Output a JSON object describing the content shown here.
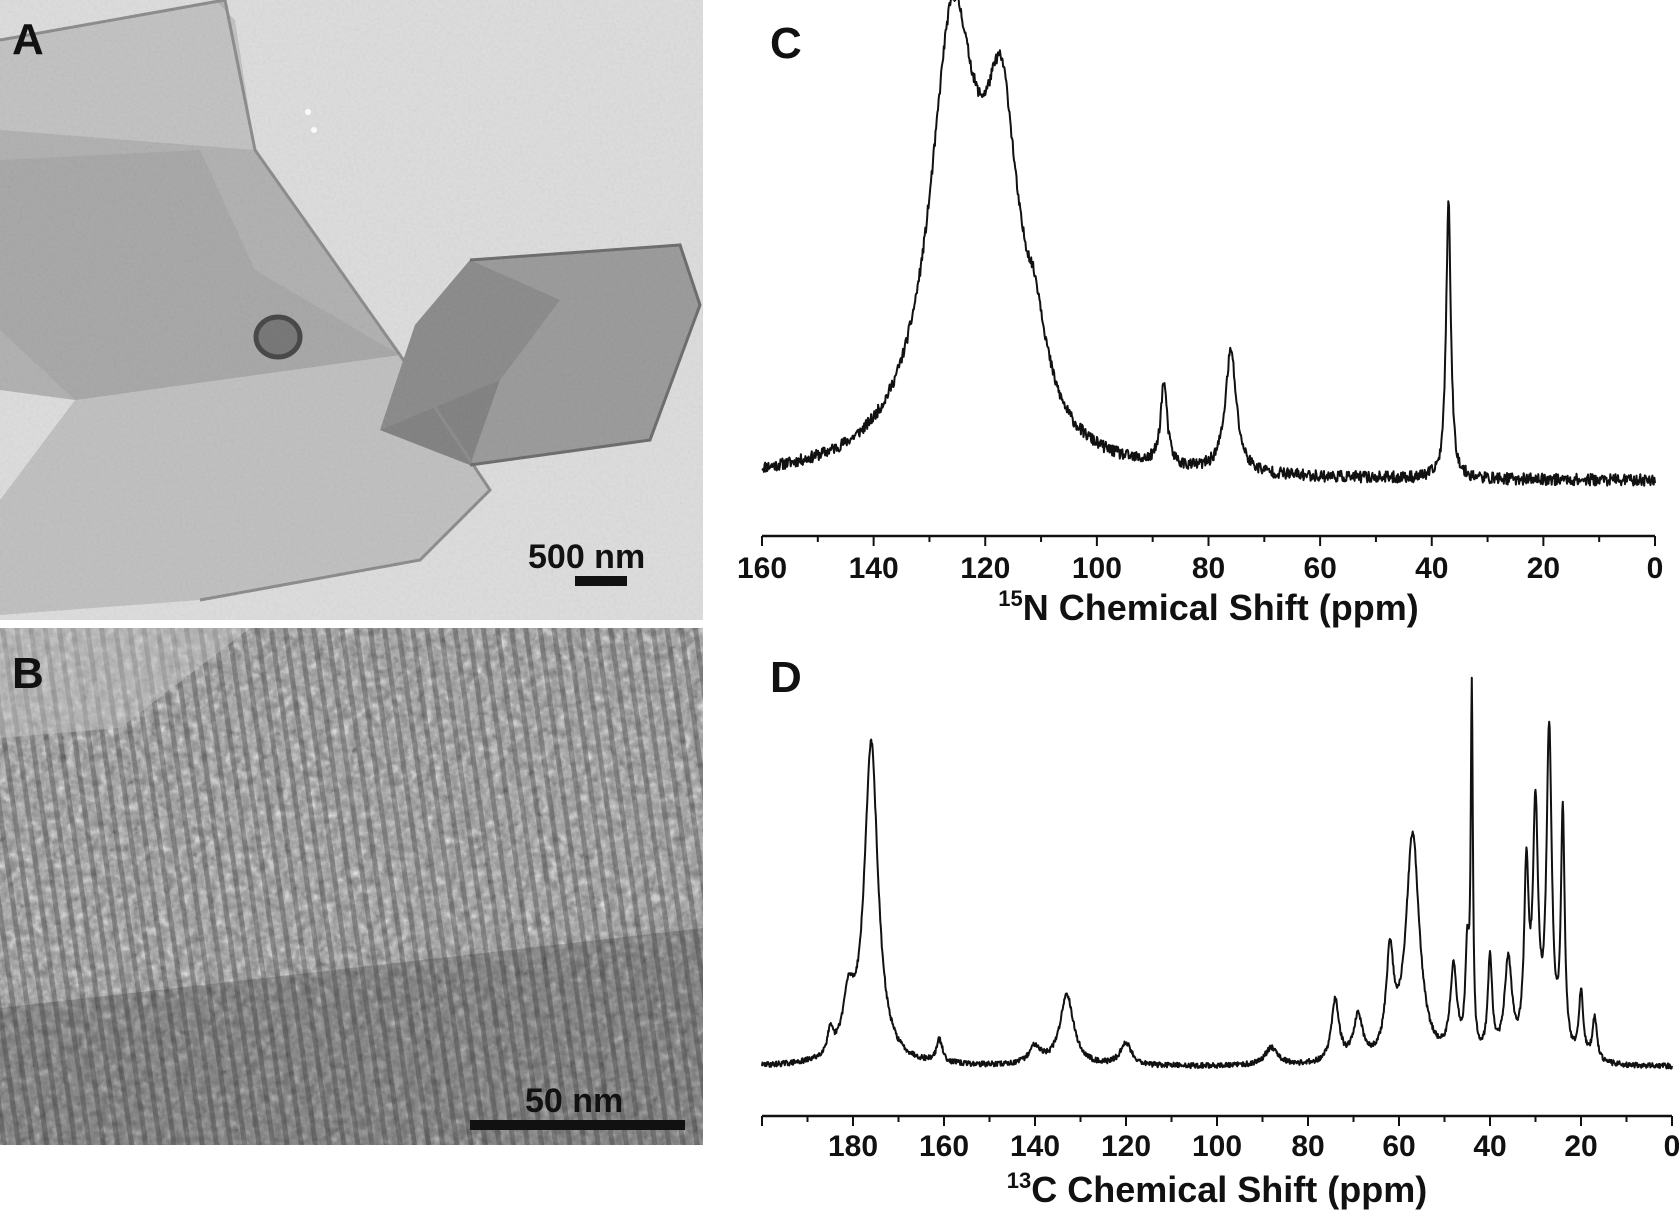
{
  "panels": {
    "A": {
      "letter": "A",
      "scale_label": "500 nm"
    },
    "B": {
      "letter": "B",
      "scale_label": "50 nm"
    },
    "C": {
      "letter": "C"
    },
    "D": {
      "letter": "D"
    }
  },
  "chart_data": [
    {
      "panel": "C",
      "type": "line",
      "title": "",
      "xlabel_sup": "15",
      "xlabel_main": "N Chemical Shift (ppm)",
      "ylabel": "",
      "xlim": [
        160,
        0
      ],
      "ylim": [
        0,
        1.0
      ],
      "reversed_x": true,
      "xticks": [
        160,
        140,
        120,
        100,
        80,
        60,
        40,
        20,
        0
      ],
      "grid": false,
      "baseline": 0.03,
      "noise": 0.012,
      "peaks": [
        {
          "center": 126.0,
          "height": 0.63,
          "width": 4.5
        },
        {
          "center": 124.0,
          "height": 0.3,
          "width": 8.0
        },
        {
          "center": 117.0,
          "height": 0.55,
          "width": 3.6
        },
        {
          "center": 111.0,
          "height": 0.14,
          "width": 2.5
        },
        {
          "center": 88.0,
          "height": 0.17,
          "width": 0.7
        },
        {
          "center": 76.0,
          "height": 0.25,
          "width": 1.2
        },
        {
          "center": 37.0,
          "height": 0.58,
          "width": 0.5
        }
      ]
    },
    {
      "panel": "D",
      "type": "line",
      "title": "",
      "xlabel_sup": "13",
      "xlabel_main": "C Chemical Shift (ppm)",
      "ylabel": "",
      "xlim": [
        200,
        0
      ],
      "ylim": [
        0,
        1.0
      ],
      "reversed_x": true,
      "xticks": [
        180,
        160,
        140,
        120,
        100,
        80,
        60,
        40,
        20,
        0
      ],
      "grid": false,
      "baseline": 0.02,
      "noise": 0.006,
      "peaks": [
        {
          "center": 185.0,
          "height": 0.05,
          "width": 0.8
        },
        {
          "center": 181.0,
          "height": 0.12,
          "width": 1.5
        },
        {
          "center": 176.0,
          "height": 0.72,
          "width": 1.8
        },
        {
          "center": 161.0,
          "height": 0.05,
          "width": 0.8
        },
        {
          "center": 140.0,
          "height": 0.04,
          "width": 1.5
        },
        {
          "center": 133.0,
          "height": 0.16,
          "width": 1.8
        },
        {
          "center": 120.0,
          "height": 0.05,
          "width": 1.5
        },
        {
          "center": 88.0,
          "height": 0.04,
          "width": 1.8
        },
        {
          "center": 74.0,
          "height": 0.14,
          "width": 1.0
        },
        {
          "center": 69.0,
          "height": 0.1,
          "width": 1.2
        },
        {
          "center": 62.0,
          "height": 0.22,
          "width": 1.0
        },
        {
          "center": 57.0,
          "height": 0.51,
          "width": 1.8
        },
        {
          "center": 48.0,
          "height": 0.2,
          "width": 0.9
        },
        {
          "center": 45.0,
          "height": 0.22,
          "width": 0.5
        },
        {
          "center": 44.0,
          "height": 0.8,
          "width": 0.28
        },
        {
          "center": 40.0,
          "height": 0.22,
          "width": 0.6
        },
        {
          "center": 36.0,
          "height": 0.22,
          "width": 1.0
        },
        {
          "center": 32.0,
          "height": 0.4,
          "width": 0.6
        },
        {
          "center": 30.0,
          "height": 0.54,
          "width": 0.7
        },
        {
          "center": 27.0,
          "height": 0.72,
          "width": 0.7
        },
        {
          "center": 24.0,
          "height": 0.54,
          "width": 0.5
        },
        {
          "center": 20.0,
          "height": 0.15,
          "width": 0.6
        },
        {
          "center": 17.0,
          "height": 0.1,
          "width": 0.6
        }
      ]
    }
  ]
}
